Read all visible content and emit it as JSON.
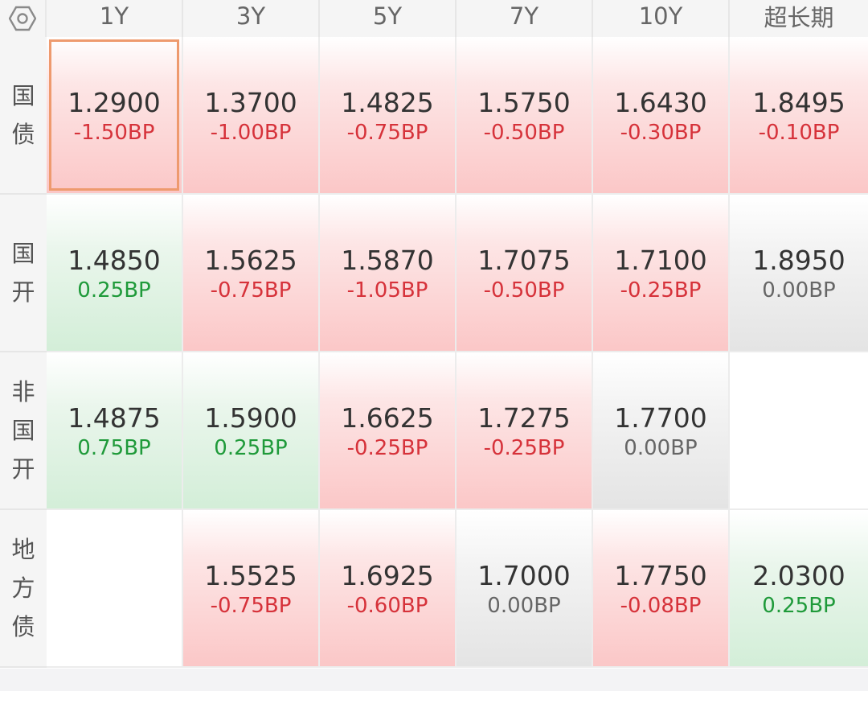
{
  "columns": [
    "1Y",
    "3Y",
    "5Y",
    "7Y",
    "10Y",
    "超长期"
  ],
  "rows": [
    {
      "label_chars": [
        "国",
        "债"
      ],
      "cells": [
        {
          "value": "1.2900",
          "change": "-1.50BP",
          "trend": "down",
          "selected": true
        },
        {
          "value": "1.3700",
          "change": "-1.00BP",
          "trend": "down"
        },
        {
          "value": "1.4825",
          "change": "-0.75BP",
          "trend": "down"
        },
        {
          "value": "1.5750",
          "change": "-0.50BP",
          "trend": "down"
        },
        {
          "value": "1.6430",
          "change": "-0.30BP",
          "trend": "down"
        },
        {
          "value": "1.8495",
          "change": "-0.10BP",
          "trend": "down"
        }
      ]
    },
    {
      "label_chars": [
        "国",
        "开"
      ],
      "cells": [
        {
          "value": "1.4850",
          "change": "0.25BP",
          "trend": "up"
        },
        {
          "value": "1.5625",
          "change": "-0.75BP",
          "trend": "down"
        },
        {
          "value": "1.5870",
          "change": "-1.05BP",
          "trend": "down"
        },
        {
          "value": "1.7075",
          "change": "-0.50BP",
          "trend": "down"
        },
        {
          "value": "1.7100",
          "change": "-0.25BP",
          "trend": "down"
        },
        {
          "value": "1.8950",
          "change": "0.00BP",
          "trend": "flat"
        }
      ]
    },
    {
      "label_chars": [
        "非",
        "国",
        "开"
      ],
      "cells": [
        {
          "value": "1.4875",
          "change": "0.75BP",
          "trend": "up"
        },
        {
          "value": "1.5900",
          "change": "0.25BP",
          "trend": "up"
        },
        {
          "value": "1.6625",
          "change": "-0.25BP",
          "trend": "down"
        },
        {
          "value": "1.7275",
          "change": "-0.25BP",
          "trend": "down"
        },
        {
          "value": "1.7700",
          "change": "0.00BP",
          "trend": "flat"
        },
        null
      ]
    },
    {
      "label_chars": [
        "地",
        "方",
        "债"
      ],
      "cells": [
        null,
        {
          "value": "1.5525",
          "change": "-0.75BP",
          "trend": "down"
        },
        {
          "value": "1.6925",
          "change": "-0.60BP",
          "trend": "down"
        },
        {
          "value": "1.7000",
          "change": "0.00BP",
          "trend": "flat"
        },
        {
          "value": "1.7750",
          "change": "-0.08BP",
          "trend": "down"
        },
        {
          "value": "2.0300",
          "change": "0.25BP",
          "trend": "up"
        }
      ]
    }
  ],
  "icons": {
    "corner": "hexagon-settings-icon"
  },
  "colors": {
    "down": "#d6323a",
    "up": "#1f9a3a",
    "flat": "#666666",
    "selected_border": "#ee9a6e"
  }
}
